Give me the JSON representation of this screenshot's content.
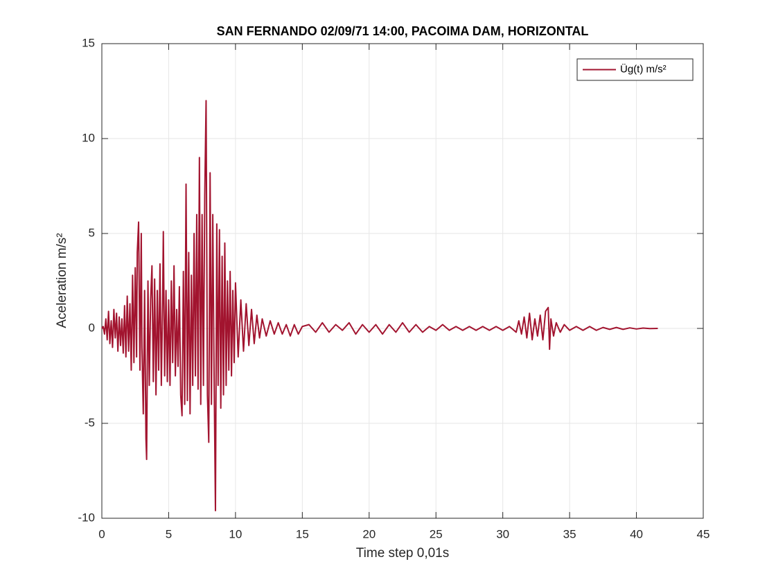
{
  "chart_data": {
    "type": "line",
    "title": "SAN FERNANDO 02/09/71 14:00, PACOIMA DAM, HORIZONTAL",
    "xlabel": "Time step 0,01s",
    "ylabel": "Aceleration m/s²",
    "xlim": [
      0,
      45
    ],
    "xticks": [
      0,
      5,
      10,
      15,
      20,
      25,
      30,
      35,
      40,
      45
    ],
    "ylim": [
      -10,
      15
    ],
    "yticks": [
      -10,
      -5,
      0,
      5,
      10,
      15
    ],
    "grid": true,
    "legend": "upper right",
    "x": [
      0,
      0.1,
      0.2,
      0.3,
      0.4,
      0.5,
      0.6,
      0.7,
      0.8,
      0.9,
      1.0,
      1.1,
      1.2,
      1.3,
      1.4,
      1.5,
      1.6,
      1.7,
      1.8,
      1.9,
      2.0,
      2.1,
      2.2,
      2.3,
      2.4,
      2.5,
      2.6,
      2.65,
      2.75,
      2.85,
      2.95,
      3.0,
      3.1,
      3.2,
      3.3,
      3.35,
      3.45,
      3.55,
      3.65,
      3.75,
      3.85,
      3.95,
      4.05,
      4.15,
      4.25,
      4.35,
      4.45,
      4.55,
      4.6,
      4.7,
      4.8,
      4.9,
      5.0,
      5.1,
      5.2,
      5.3,
      5.4,
      5.5,
      5.6,
      5.7,
      5.8,
      5.9,
      6.0,
      6.1,
      6.2,
      6.3,
      6.4,
      6.5,
      6.6,
      6.7,
      6.8,
      6.9,
      7.0,
      7.1,
      7.2,
      7.3,
      7.4,
      7.5,
      7.6,
      7.7,
      7.8,
      7.9,
      8.0,
      8.1,
      8.2,
      8.3,
      8.4,
      8.5,
      8.6,
      8.7,
      8.8,
      8.9,
      9.0,
      9.1,
      9.2,
      9.3,
      9.4,
      9.5,
      9.6,
      9.7,
      9.8,
      9.9,
      10.0,
      10.2,
      10.4,
      10.6,
      10.8,
      11.0,
      11.2,
      11.4,
      11.6,
      11.8,
      12.0,
      12.3,
      12.6,
      12.9,
      13.2,
      13.5,
      13.8,
      14.1,
      14.4,
      14.7,
      15,
      15.5,
      16,
      16.5,
      17,
      17.5,
      18,
      18.5,
      19,
      19.5,
      20,
      20.5,
      21,
      21.5,
      22,
      22.5,
      23,
      23.5,
      24,
      24.5,
      25,
      25.5,
      26,
      26.5,
      27,
      27.5,
      28,
      28.5,
      29,
      29.5,
      30,
      30.5,
      31,
      31.2,
      31.4,
      31.6,
      31.8,
      32.0,
      32.2,
      32.4,
      32.6,
      32.8,
      33.0,
      33.2,
      33.4,
      33.5,
      33.6,
      33.8,
      34.0,
      34.3,
      34.6,
      35,
      35.5,
      36,
      36.5,
      37,
      37.5,
      38,
      38.5,
      39,
      39.5,
      40,
      40.5,
      41,
      41.6
    ],
    "series": [
      {
        "name": "Üg(t) m/s²",
        "color": "#a2142f",
        "values": [
          0,
          0.1,
          -0.3,
          0.5,
          -0.6,
          0.9,
          -0.8,
          0.4,
          -1.0,
          1.0,
          -0.5,
          0.8,
          -1.2,
          0.6,
          -0.9,
          0.5,
          -1.3,
          1.2,
          -1.5,
          1.7,
          -1.2,
          1.3,
          -2.2,
          2.8,
          -1.8,
          3.2,
          -1.5,
          4.0,
          5.6,
          -2.2,
          5.0,
          -1.0,
          -4.5,
          2.0,
          -5.8,
          -6.9,
          2.5,
          -3.0,
          1.5,
          3.3,
          -2.8,
          2.6,
          -3.5,
          2.0,
          -2.2,
          3.4,
          -3.0,
          1.5,
          5.1,
          -2.5,
          2.0,
          -2.8,
          1.5,
          -3.0,
          2.5,
          -1.8,
          3.3,
          -2.5,
          1.0,
          -2.0,
          2.2,
          -3.5,
          -4.6,
          3.0,
          -4.0,
          7.6,
          -3.8,
          4.0,
          -4.5,
          2.8,
          -3.0,
          5.0,
          -2.5,
          6.0,
          -3.2,
          9.0,
          -4.0,
          6.0,
          -3.0,
          7.0,
          12.0,
          -3.5,
          -6.0,
          8.2,
          -4.0,
          6.0,
          -2.5,
          -9.6,
          5.5,
          -3.0,
          5.2,
          -4.2,
          3.8,
          -3.5,
          4.5,
          -3.0,
          2.5,
          -2.2,
          3.0,
          -2.5,
          2.0,
          -1.8,
          2.4,
          -1.5,
          1.5,
          -1.2,
          1.3,
          -0.9,
          1.0,
          -0.8,
          0.7,
          -0.5,
          0.5,
          -0.4,
          0.4,
          -0.3,
          0.3,
          -0.3,
          0.2,
          -0.4,
          0.2,
          -0.3,
          0.1,
          0.2,
          -0.2,
          0.3,
          -0.2,
          0.2,
          -0.1,
          0.3,
          -0.3,
          0.2,
          -0.2,
          0.2,
          -0.3,
          0.2,
          -0.2,
          0.3,
          -0.2,
          0.2,
          -0.2,
          0.1,
          -0.1,
          0.2,
          -0.1,
          0.1,
          -0.1,
          0.1,
          -0.1,
          0.1,
          -0.1,
          0.1,
          -0.1,
          0.1,
          -0.2,
          0.4,
          -0.3,
          0.6,
          -0.5,
          0.8,
          -0.6,
          0.5,
          -0.4,
          0.7,
          -0.6,
          0.9,
          1.1,
          -1.1,
          0.5,
          -0.4,
          0.3,
          -0.2,
          0.2,
          -0.1,
          0.1,
          -0.1,
          0.1,
          -0.1,
          0.05,
          -0.05,
          0.05,
          -0.05,
          0.03,
          -0.03,
          0.02,
          -0.01,
          0
        ]
      }
    ]
  }
}
